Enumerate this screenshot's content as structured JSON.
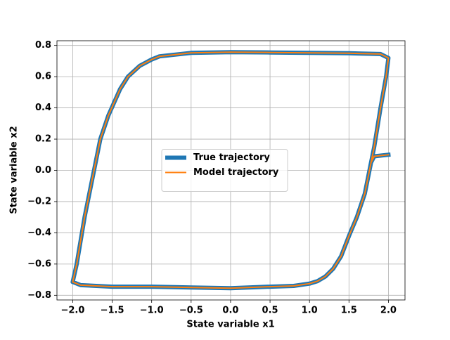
{
  "chart_data": {
    "type": "line",
    "xlabel": "State variable x1",
    "ylabel": "State variable x2",
    "x": [
      2.0,
      1.82,
      1.78,
      1.7,
      1.6,
      1.5,
      1.4,
      1.3,
      1.2,
      1.1,
      1.0,
      0.8,
      0.5,
      0.0,
      -0.5,
      -1.0,
      -1.5,
      -1.9,
      -2.0,
      -1.95,
      -1.85,
      -1.75,
      -1.65,
      -1.55,
      -1.4,
      -1.3,
      -1.15,
      -1.0,
      -0.9,
      -0.5,
      0.0,
      0.5,
      1.0,
      1.5,
      1.9,
      2.0,
      1.97,
      1.9,
      1.82,
      1.78
    ],
    "series": [
      {
        "name": "True trajectory",
        "color": "#1f77b4",
        "values": [
          0.1,
          0.09,
          0.05,
          -0.15,
          -0.3,
          -0.42,
          -0.55,
          -0.63,
          -0.68,
          -0.71,
          -0.725,
          -0.74,
          -0.745,
          -0.755,
          -0.75,
          -0.745,
          -0.745,
          -0.735,
          -0.715,
          -0.6,
          -0.3,
          -0.05,
          0.2,
          0.35,
          0.52,
          0.6,
          0.67,
          0.71,
          0.73,
          0.752,
          0.757,
          0.755,
          0.752,
          0.75,
          0.745,
          0.72,
          0.6,
          0.4,
          0.15,
          0.05
        ]
      },
      {
        "name": "Model trajectory",
        "color": "#ff7f0e",
        "values": [
          0.1,
          0.09,
          0.05,
          -0.15,
          -0.3,
          -0.42,
          -0.55,
          -0.63,
          -0.68,
          -0.71,
          -0.725,
          -0.74,
          -0.745,
          -0.755,
          -0.75,
          -0.745,
          -0.745,
          -0.735,
          -0.715,
          -0.6,
          -0.3,
          -0.05,
          0.2,
          0.35,
          0.52,
          0.6,
          0.67,
          0.71,
          0.73,
          0.752,
          0.757,
          0.755,
          0.752,
          0.75,
          0.745,
          0.72,
          0.6,
          0.4,
          0.15,
          0.05
        ]
      }
    ],
    "xlim": [
      -2.2,
      2.21
    ],
    "ylim": [
      -0.83,
      0.83
    ],
    "xticks": [
      {
        "value": -2.0,
        "label": "−2.0"
      },
      {
        "value": -1.5,
        "label": "−1.5"
      },
      {
        "value": -1.0,
        "label": "−1.0"
      },
      {
        "value": -0.5,
        "label": "−0.5"
      },
      {
        "value": 0.0,
        "label": "0.0"
      },
      0.5,
      {
        "value": 1.0,
        "label": "1.0"
      },
      1.5,
      {
        "value": 2.0,
        "label": "2.0"
      }
    ],
    "yticks": [
      {
        "value": -0.8,
        "label": "−0.8"
      },
      {
        "value": -0.6,
        "label": "−0.6"
      },
      {
        "value": -0.4,
        "label": "−0.4"
      },
      {
        "value": -0.2,
        "label": "−0.2"
      },
      {
        "value": 0.0,
        "label": "0.0"
      },
      0.2,
      0.4,
      0.6,
      0.8
    ],
    "grid": true,
    "legend": "center"
  }
}
